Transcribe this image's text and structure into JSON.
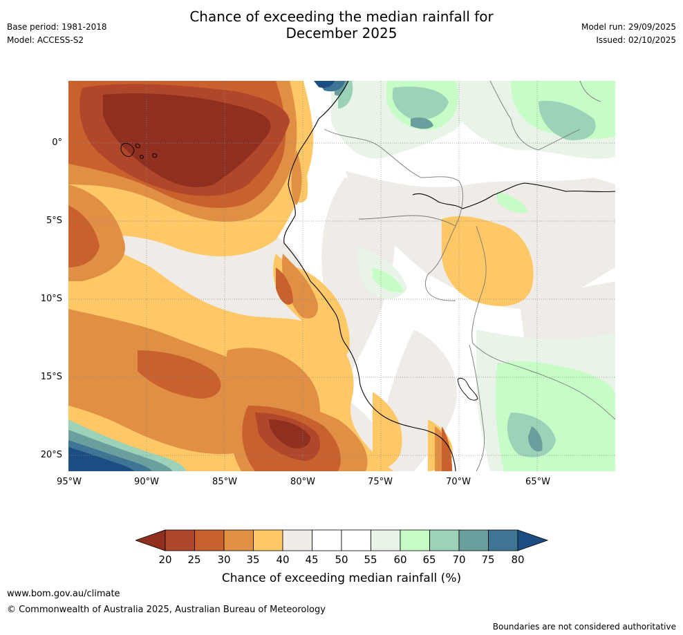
{
  "header": {
    "title_line1": "Chance of exceeding the median rainfall for",
    "title_line2": "December 2025",
    "base_period": "Base period: 1981-2018",
    "model": "Model: ACCESS-S2",
    "model_run": "Model run: 29/09/2025",
    "issued": "Issued: 02/10/2025"
  },
  "map": {
    "lat_labels": [
      "0°",
      "5°S",
      "10°S",
      "15°S",
      "20°S"
    ],
    "lon_labels": [
      "95°W",
      "90°W",
      "85°W",
      "80°W",
      "75°W",
      "70°W",
      "65°W"
    ]
  },
  "colorbar": {
    "label": "Chance of exceeding median rainfall (%)",
    "ticks": [
      "20",
      "25",
      "30",
      "35",
      "40",
      "45",
      "50",
      "55",
      "60",
      "65",
      "70",
      "75",
      "80"
    ],
    "colors": {
      "below_20": "#8e2f1f",
      "20_25": "#b0472a",
      "25_30": "#c9612f",
      "30_35": "#e08f45",
      "35_40": "#fdc865",
      "40_45": "#efebe7",
      "45_50": "#ffffff",
      "50_55": "#ffffff",
      "55_60": "#e8f4e8",
      "60_65": "#c6fcc6",
      "65_70": "#9bd2b8",
      "70_75": "#6a9f9e",
      "75_80": "#3f7594",
      "above_80": "#1b4d83"
    }
  },
  "footer": {
    "website": "www.bom.gov.au/climate",
    "copyright": "© Commonwealth of Australia 2025, Australian Bureau of Meteorology",
    "disclaimer": "Boundaries are not considered authoritative"
  }
}
